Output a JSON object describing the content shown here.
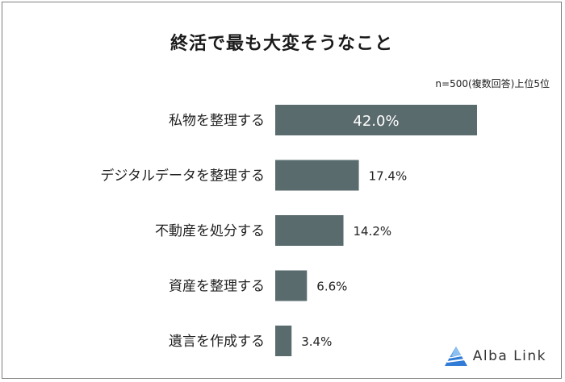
{
  "chart_data": {
    "type": "bar",
    "orientation": "horizontal",
    "title": "終活で最も大変そうなこと",
    "note": "n=500(複数回答)上位5位",
    "categories": [
      "私物を整理する",
      "デジタルデータを整理する",
      "不動産を処分する",
      "資産を整理する",
      "遺言を作成する"
    ],
    "values": [
      42.0,
      17.4,
      14.2,
      6.6,
      3.4
    ],
    "value_labels": [
      "42.0%",
      "17.4%",
      "14.2%",
      "6.6%",
      "3.4%"
    ],
    "xlim": [
      0,
      42.0
    ],
    "bar_color": "#5a6b6e",
    "grid": false,
    "legend": "none"
  },
  "logo": {
    "text": "Alba Link",
    "icon": "alba-link-logo-icon",
    "color": "#2f7bd6"
  }
}
